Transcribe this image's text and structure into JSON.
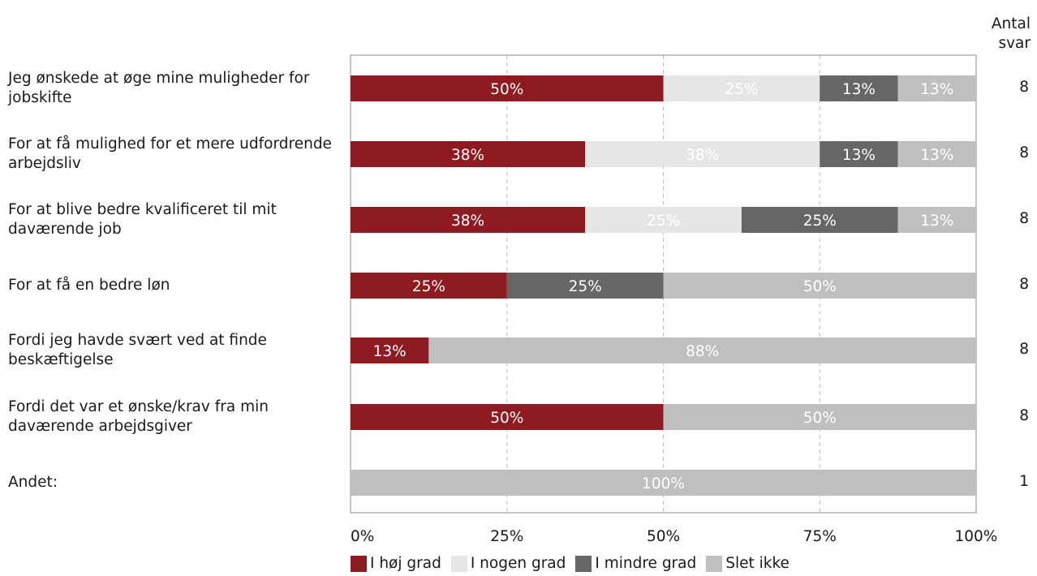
{
  "chart_data": {
    "type": "bar",
    "orientation": "horizontal",
    "stacked": true,
    "categories": [
      "Jeg ønskede at øge mine muligheder for jobskifte",
      "For at få mulighed for et mere udfordrende arbejdsliv",
      "For at blive bedre kvalificeret til mit daværende job",
      "For at få en bedre løn",
      "Fordi jeg havde svært ved at finde beskæftigelse",
      "Fordi det var et ønske/krav fra min daværende arbejdsgiver",
      "Andet:"
    ],
    "series": [
      {
        "name": "I høj grad",
        "color": "#8e1b22",
        "text_color": "#ffffff",
        "values": [
          50,
          37.5,
          37.5,
          25,
          12.5,
          50,
          0
        ],
        "labels": [
          "50%",
          "38%",
          "38%",
          "25%",
          "13%",
          "50%",
          ""
        ]
      },
      {
        "name": "I nogen grad",
        "color": "#e6e6e6",
        "text_color": "#ffffff",
        "values": [
          25,
          37.5,
          25,
          0,
          0,
          0,
          0
        ],
        "labels": [
          "25%",
          "38%",
          "25%",
          "",
          "",
          "",
          ""
        ]
      },
      {
        "name": "I mindre grad",
        "color": "#666666",
        "text_color": "#ffffff",
        "values": [
          12.5,
          12.5,
          25,
          25,
          0,
          0,
          0
        ],
        "labels": [
          "13%",
          "13%",
          "25%",
          "25%",
          "",
          "",
          ""
        ]
      },
      {
        "name": "Slet ikke",
        "color": "#bfbfbf",
        "text_color": "#ffffff",
        "values": [
          12.5,
          12.5,
          12.5,
          50,
          87.5,
          50,
          100
        ],
        "labels": [
          "13%",
          "13%",
          "13%",
          "50%",
          "88%",
          "50%",
          "100%"
        ]
      }
    ],
    "counts_header": "Antal svar",
    "counts_header_lines": [
      "Antal",
      "svar"
    ],
    "counts": [
      "8",
      "8",
      "8",
      "8",
      "8",
      "8",
      "1"
    ],
    "x_ticks": [
      "0%",
      "25%",
      "50%",
      "75%",
      "100%"
    ],
    "xlim": [
      0,
      100
    ],
    "grid": true,
    "legend_position": "bottom"
  }
}
